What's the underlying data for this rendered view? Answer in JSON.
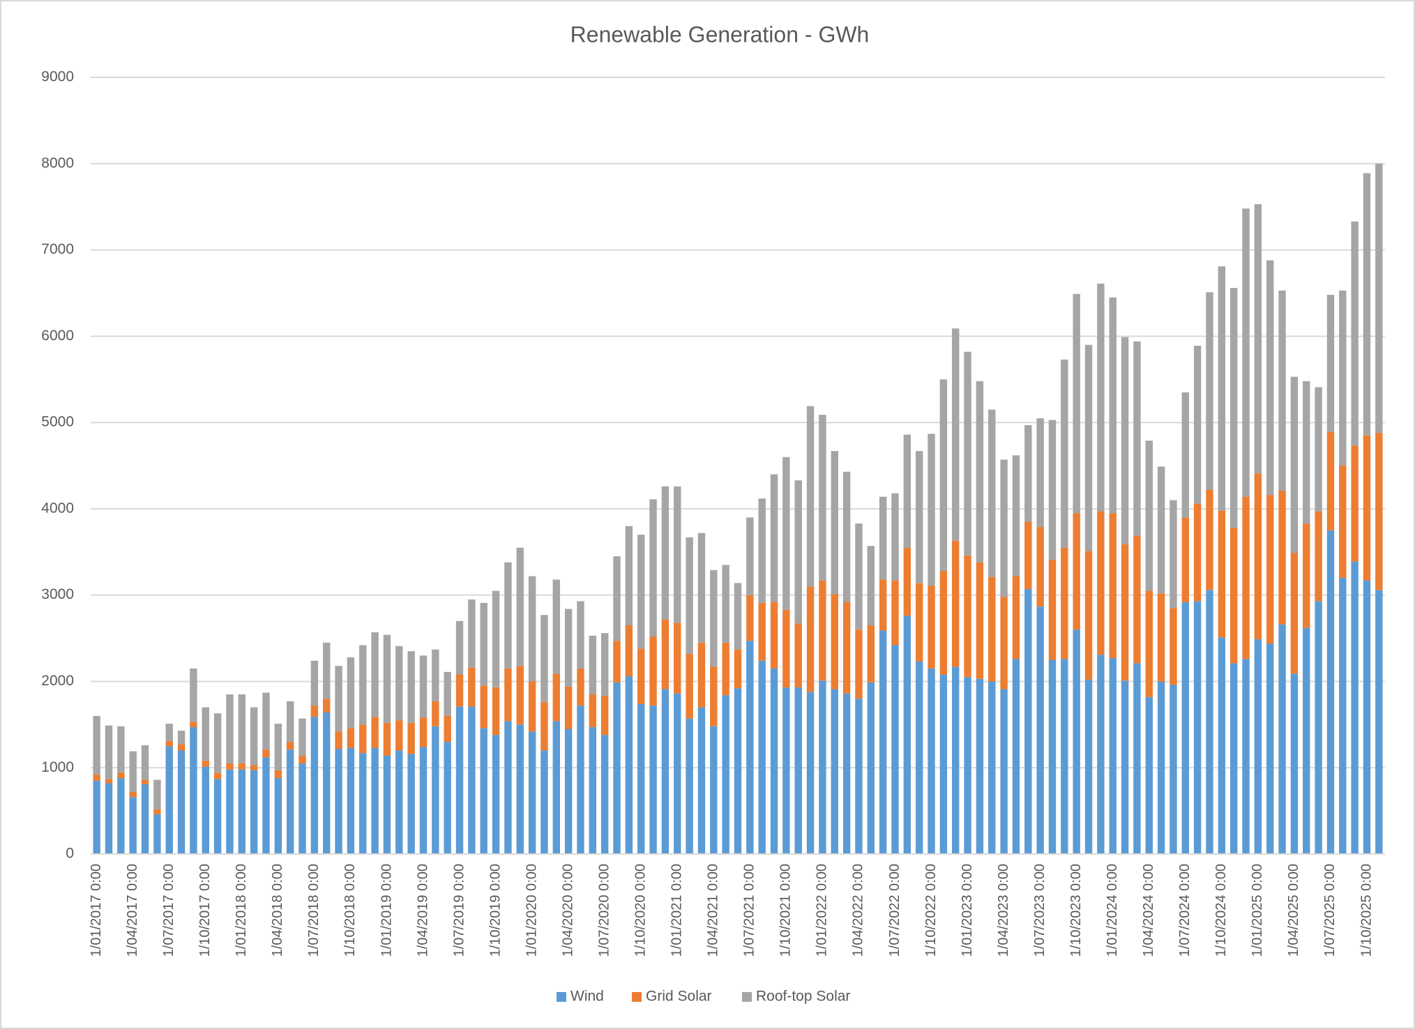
{
  "chart_data": {
    "type": "stacked_bar",
    "title": "Renewable Generation - GWh",
    "categories": [
      "1/01/2017 0:00",
      null,
      null,
      "1/04/2017 0:00",
      null,
      null,
      "1/07/2017 0:00",
      null,
      null,
      "1/10/2017 0:00",
      null,
      null,
      "1/01/2018 0:00",
      null,
      null,
      "1/04/2018 0:00",
      null,
      null,
      "1/07/2018 0:00",
      null,
      null,
      "1/10/2018 0:00",
      null,
      null,
      "1/01/2019 0:00",
      null,
      null,
      "1/04/2019 0:00",
      null,
      null,
      "1/07/2019 0:00",
      null,
      null,
      "1/10/2019 0:00",
      null,
      null,
      "1/01/2020 0:00",
      null,
      null,
      "1/04/2020 0:00",
      null,
      null,
      "1/07/2020 0:00",
      null,
      null,
      "1/10/2020 0:00",
      null,
      null,
      "1/01/2021 0:00",
      null,
      null,
      "1/04/2021 0:00",
      null,
      null,
      "1/07/2021 0:00",
      null,
      null,
      "1/10/2021 0:00",
      null,
      null,
      "1/01/2022 0:00",
      null,
      null,
      "1/04/2022 0:00",
      null,
      null,
      "1/07/2022 0:00",
      null,
      null,
      "1/10/2022 0:00",
      null,
      null,
      "1/01/2023 0:00",
      null,
      null,
      "1/04/2023 0:00",
      null,
      null,
      "1/07/2023 0:00",
      null,
      null,
      "1/10/2023 0:00",
      null,
      null,
      "1/01/2024 0:00",
      null,
      null,
      "1/04/2024 0:00",
      null,
      null,
      "1/07/2024 0:00",
      null,
      null,
      "1/10/2024 0:00",
      null,
      null,
      "1/01/2025 0:00",
      null,
      null,
      "1/04/2025 0:00",
      null,
      null,
      "1/07/2025 0:00",
      null,
      null,
      "1/10/2025 0:00",
      null
    ],
    "series": [
      {
        "name": "Wind",
        "color": "#5b9bd5",
        "values": [
          850,
          820,
          880,
          660,
          810,
          460,
          1250,
          1200,
          1470,
          1010,
          870,
          980,
          980,
          970,
          1120,
          880,
          1210,
          1050,
          1590,
          1640,
          1220,
          1230,
          1170,
          1230,
          1140,
          1200,
          1160,
          1240,
          1480,
          1300,
          1710,
          1710,
          1460,
          1380,
          1540,
          1500,
          1420,
          1200,
          1540,
          1450,
          1720,
          1470,
          1380,
          1990,
          2060,
          1740,
          1720,
          1910,
          1860,
          1570,
          1700,
          1480,
          1840,
          1920,
          2470,
          2240,
          2150,
          1930,
          1930,
          1880,
          2010,
          1910,
          1860,
          1800,
          1990,
          2590,
          2420,
          2760,
          2230,
          2150,
          2080,
          2170,
          2050,
          2030,
          2000,
          1910,
          2260,
          3070,
          2870,
          2250,
          2260,
          2600,
          2020,
          2310,
          2270,
          2010,
          2210,
          1820,
          2000,
          1960,
          2920,
          2930,
          3060,
          2510,
          2210,
          2260,
          2490,
          2440,
          2660,
          2090,
          2620,
          2930,
          3750,
          3200,
          3390,
          3170,
          3060
        ]
      },
      {
        "name": "Grid Solar",
        "color": "#ed7d31",
        "values": [
          70,
          50,
          60,
          60,
          50,
          60,
          60,
          70,
          60,
          70,
          70,
          70,
          70,
          60,
          90,
          90,
          90,
          90,
          130,
          160,
          200,
          230,
          330,
          360,
          380,
          350,
          360,
          340,
          290,
          300,
          370,
          450,
          490,
          550,
          610,
          680,
          580,
          560,
          550,
          490,
          430,
          380,
          450,
          480,
          590,
          640,
          800,
          810,
          820,
          750,
          750,
          690,
          610,
          450,
          530,
          670,
          770,
          900,
          740,
          1220,
          1160,
          1100,
          1060,
          800,
          660,
          590,
          750,
          790,
          910,
          960,
          1200,
          1460,
          1410,
          1350,
          1210,
          1070,
          960,
          780,
          920,
          1160,
          1290,
          1350,
          1490,
          1660,
          1680,
          1580,
          1480,
          1230,
          1020,
          890,
          980,
          1130,
          1160,
          1470,
          1570,
          1880,
          1920,
          1720,
          1550,
          1400,
          1210,
          1040,
          1140,
          1300,
          1340,
          1680,
          1820
        ]
      },
      {
        "name": "Roof-top Solar",
        "color": "#a5a5a5",
        "values": [
          680,
          620,
          540,
          470,
          400,
          340,
          200,
          160,
          620,
          620,
          690,
          800,
          800,
          670,
          660,
          540,
          470,
          430,
          520,
          650,
          760,
          820,
          920,
          980,
          1020,
          860,
          830,
          720,
          600,
          510,
          620,
          790,
          960,
          1120,
          1230,
          1370,
          1220,
          1010,
          1090,
          900,
          780,
          680,
          730,
          980,
          1150,
          1320,
          1590,
          1540,
          1580,
          1350,
          1270,
          1120,
          900,
          770,
          900,
          1210,
          1480,
          1770,
          1660,
          2090,
          1920,
          1660,
          1510,
          1230,
          920,
          960,
          1010,
          1310,
          1530,
          1760,
          2220,
          2460,
          2360,
          2100,
          1940,
          1590,
          1400,
          1120,
          1260,
          1620,
          2180,
          2540,
          2390,
          2640,
          2500,
          2400,
          2250,
          1740,
          1470,
          1250,
          1450,
          1830,
          2290,
          2830,
          2780,
          3340,
          3120,
          2720,
          2320,
          2040,
          1650,
          1440,
          1590,
          2030,
          2600,
          3040,
          3120
        ]
      }
    ],
    "ylim": [
      0,
      9000
    ],
    "yticks": [
      0,
      1000,
      2000,
      3000,
      4000,
      5000,
      6000,
      7000,
      8000,
      9000
    ],
    "grid": true,
    "legend": "bottom"
  }
}
